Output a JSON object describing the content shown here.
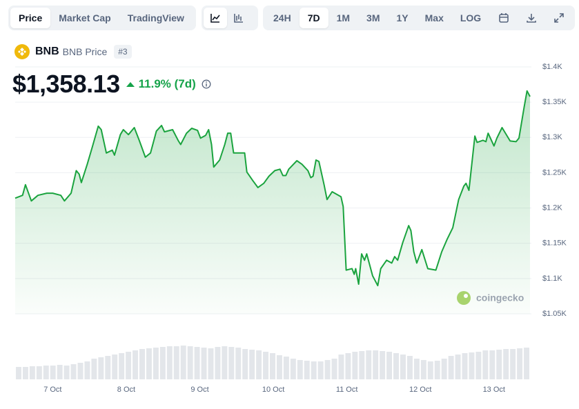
{
  "toolbar": {
    "views": [
      "Price",
      "Market Cap",
      "TradingView"
    ],
    "active_view": "Price",
    "ranges": [
      "24H",
      "7D",
      "1M",
      "3M",
      "1Y",
      "Max",
      "LOG"
    ],
    "active_range": "7D"
  },
  "header": {
    "symbol": "BNB",
    "name": "BNB Price",
    "rank": "#3",
    "price": "$1,358.13",
    "change": "11.9% (7d)"
  },
  "watermark": "coingecko",
  "chart_data": {
    "type": "line",
    "color": "#1aa33e",
    "grid": true,
    "x": [
      6.49,
      6.59,
      6.63,
      6.71,
      6.8,
      6.92,
      7.0,
      7.11,
      7.16,
      7.25,
      7.32,
      7.36,
      7.39,
      7.47,
      7.54,
      7.62,
      7.66,
      7.73,
      7.81,
      7.84,
      7.92,
      7.96,
      8.03,
      8.11,
      8.18,
      8.26,
      8.33,
      8.41,
      8.48,
      8.52,
      8.63,
      8.71,
      8.74,
      8.82,
      8.89,
      8.97,
      9.01,
      9.08,
      9.12,
      9.16,
      9.19,
      9.27,
      9.34,
      9.38,
      9.42,
      9.46,
      9.61,
      9.64,
      9.72,
      9.79,
      9.87,
      9.94,
      10.02,
      10.09,
      10.13,
      10.17,
      10.21,
      10.32,
      10.39,
      10.47,
      10.51,
      10.54,
      10.58,
      10.62,
      10.69,
      10.73,
      10.8,
      10.92,
      10.95,
      10.99,
      11.07,
      11.1,
      11.12,
      11.16,
      11.2,
      11.24,
      11.27,
      11.35,
      11.42,
      11.46,
      11.54,
      11.61,
      11.65,
      11.69,
      11.76,
      11.84,
      11.87,
      11.91,
      11.95,
      12.02,
      12.1,
      12.21,
      12.29,
      12.36,
      12.44,
      12.52,
      12.59,
      12.62,
      12.66,
      12.74,
      12.77,
      12.85,
      12.89,
      12.92,
      13.0,
      13.04,
      13.11,
      13.22,
      13.3,
      13.34,
      13.41,
      13.45,
      13.49
    ],
    "series": [
      {
        "values": [
          1214,
          1218,
          1233,
          1210,
          1218,
          1221,
          1221,
          1218,
          1210,
          1221,
          1253,
          1248,
          1236,
          1262,
          1287,
          1316,
          1311,
          1278,
          1282,
          1275,
          1304,
          1311,
          1304,
          1314,
          1295,
          1272,
          1278,
          1309,
          1317,
          1308,
          1311,
          1295,
          1290,
          1306,
          1313,
          1310,
          1299,
          1303,
          1311,
          1290,
          1258,
          1268,
          1290,
          1306,
          1306,
          1278,
          1278,
          1251,
          1239,
          1229,
          1235,
          1245,
          1253,
          1255,
          1246,
          1246,
          1255,
          1267,
          1262,
          1253,
          1243,
          1245,
          1268,
          1266,
          1233,
          1212,
          1223,
          1216,
          1202,
          1112,
          1114,
          1106,
          1114,
          1092,
          1135,
          1126,
          1135,
          1104,
          1090,
          1114,
          1126,
          1122,
          1131,
          1126,
          1151,
          1175,
          1168,
          1138,
          1122,
          1141,
          1114,
          1112,
          1138,
          1155,
          1172,
          1212,
          1231,
          1235,
          1225,
          1302,
          1293,
          1296,
          1294,
          1306,
          1288,
          1299,
          1314,
          1295,
          1294,
          1299,
          1343,
          1366,
          1358
        ]
      }
    ],
    "xlim": [
      6.49,
      13.49
    ],
    "xticks": [
      {
        "value": 7,
        "label": "7 Oct"
      },
      {
        "value": 8,
        "label": "8 Oct"
      },
      {
        "value": 9,
        "label": "9 Oct"
      },
      {
        "value": 10,
        "label": "10 Oct"
      },
      {
        "value": 11,
        "label": "11 Oct"
      },
      {
        "value": 12,
        "label": "12 Oct"
      },
      {
        "value": 13,
        "label": "13 Oct"
      }
    ],
    "ylim": [
      1050,
      1400
    ],
    "yticks": [
      {
        "value": 1400,
        "label": "$1.4K"
      },
      {
        "value": 1350,
        "label": "$1.35K"
      },
      {
        "value": 1300,
        "label": "$1.3K"
      },
      {
        "value": 1250,
        "label": "$1.25K"
      },
      {
        "value": 1200,
        "label": "$1.2K"
      },
      {
        "value": 1150,
        "label": "$1.15K"
      },
      {
        "value": 1100,
        "label": "$1.1K"
      },
      {
        "value": 1050,
        "label": "$1.05K"
      }
    ],
    "volume": {
      "color": "#e3e6ea",
      "vlim": [
        0,
        50
      ],
      "values": [
        18,
        18,
        19,
        19,
        20,
        20,
        21,
        20,
        22,
        24,
        26,
        30,
        32,
        34,
        36,
        38,
        40,
        42,
        44,
        45,
        46,
        47,
        48,
        48,
        49,
        48,
        47,
        46,
        45,
        47,
        48,
        47,
        46,
        44,
        43,
        42,
        40,
        38,
        35,
        33,
        30,
        28,
        27,
        26,
        26,
        28,
        30,
        36,
        38,
        40,
        41,
        42,
        42,
        41,
        40,
        38,
        36,
        34,
        30,
        28,
        26,
        27,
        30,
        34,
        36,
        38,
        39,
        40,
        42,
        42,
        43,
        44,
        44,
        45,
        46
      ]
    }
  }
}
